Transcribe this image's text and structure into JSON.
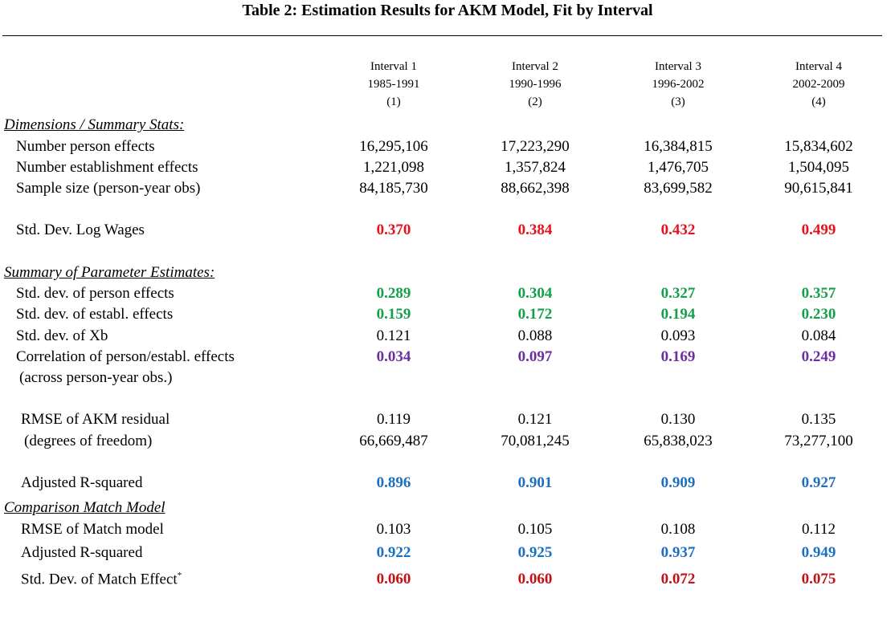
{
  "title": "Table 2: Estimation Results for AKM Model, Fit by Interval",
  "columns": [
    {
      "name": "Interval 1",
      "years": "1985-1991",
      "num": "(1)"
    },
    {
      "name": "Interval 2",
      "years": "1990-1996",
      "num": "(2)"
    },
    {
      "name": "Interval 3",
      "years": "1996-2002",
      "num": "(3)"
    },
    {
      "name": "Interval 4",
      "years": "2002-2009",
      "num": "(4)"
    }
  ],
  "sections": {
    "dimensions": "Dimensions / Summary Stats:",
    "parameters": "Summary of Parameter Estimates:",
    "match": "Comparison Match Model"
  },
  "rows": {
    "person_effects": {
      "label": "Number person effects",
      "values": [
        "16,295,106",
        "17,223,290",
        "16,384,815",
        "15,834,602"
      ]
    },
    "estab_effects": {
      "label": "Number establishment effects",
      "values": [
        "1,221,098",
        "1,357,824",
        "1,476,705",
        "1,504,095"
      ]
    },
    "sample_size": {
      "label": "Sample size (person-year obs)",
      "values": [
        "84,185,730",
        "88,662,398",
        "83,699,582",
        "90,615,841"
      ]
    },
    "sd_log_wages": {
      "label": "Std. Dev. Log Wages",
      "values": [
        "0.370",
        "0.384",
        "0.432",
        "0.499"
      ]
    },
    "sd_person": {
      "label": "Std. dev. of person effects",
      "values": [
        "0.289",
        "0.304",
        "0.327",
        "0.357"
      ]
    },
    "sd_estab": {
      "label": "Std. dev. of establ. effects",
      "values": [
        "0.159",
        "0.172",
        "0.194",
        "0.230"
      ]
    },
    "sd_xb": {
      "label": "Std. dev. of Xb",
      "values": [
        "0.121",
        "0.088",
        "0.093",
        "0.084"
      ]
    },
    "corr": {
      "label": "Correlation of person/establ. effects",
      "label2": "(across person-year obs.)",
      "values": [
        "0.034",
        "0.097",
        "0.169",
        "0.249"
      ]
    },
    "rmse": {
      "label": "RMSE of AKM residual",
      "label2": "(degrees of freedom)",
      "values": [
        "0.119",
        "0.121",
        "0.130",
        "0.135"
      ],
      "values2": [
        "66,669,487",
        "70,081,245",
        "65,838,023",
        "73,277,100"
      ]
    },
    "adj_r2": {
      "label": "Adjusted R-squared",
      "values": [
        "0.896",
        "0.901",
        "0.909",
        "0.927"
      ]
    },
    "rmse_match": {
      "label": "RMSE of Match model",
      "values": [
        "0.103",
        "0.105",
        "0.108",
        "0.112"
      ]
    },
    "adj_r2_match": {
      "label": "Adjusted R-squared",
      "values": [
        "0.922",
        "0.925",
        "0.937",
        "0.949"
      ]
    },
    "sd_match": {
      "label": "Std. Dev. of Match Effect",
      "footnote": "*",
      "values": [
        "0.060",
        "0.060",
        "0.072",
        "0.075"
      ]
    }
  },
  "colors": {
    "red": "#e8101a",
    "green": "#14a04a",
    "purple": "#6a2fa0",
    "blue": "#1c6fc0",
    "darkred": "#c0101a"
  }
}
